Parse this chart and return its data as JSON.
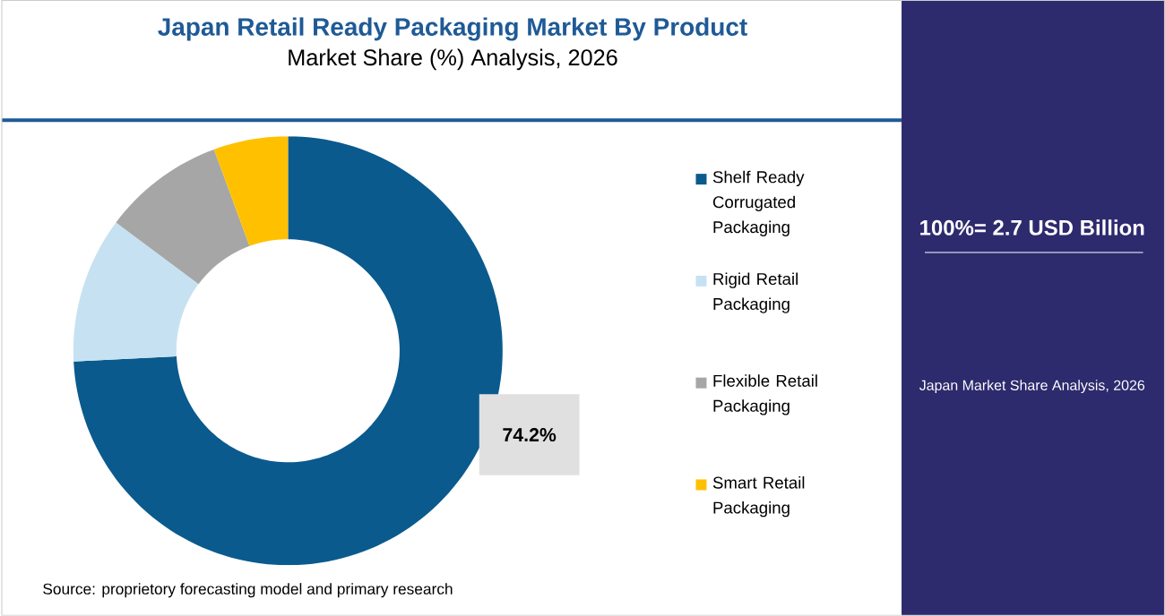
{
  "chart_data": {
    "type": "donut",
    "title": "Japan Retail Ready Packaging Market By Product",
    "subtitle": "Market Share (%) Analysis, 2026",
    "categories": [
      "Shelf Ready Corrugated Packaging",
      "Rigid Retail Packaging",
      "Flexible Retail Packaging",
      "Smart Retail Packaging"
    ],
    "values": [
      74.2,
      11.0,
      9.2,
      5.6
    ],
    "colors": [
      "#0a5a8e",
      "#c6e2f2",
      "#a6a6a6",
      "#ffc000"
    ],
    "value_labels": [
      "74.2%",
      null,
      null,
      null
    ],
    "legend": "right",
    "annotations": [
      "100%= 2.7 USD Billion",
      "Japan Market Share Analysis, 2026",
      "Source: proprietory forecasting model and primary research"
    ]
  }
}
